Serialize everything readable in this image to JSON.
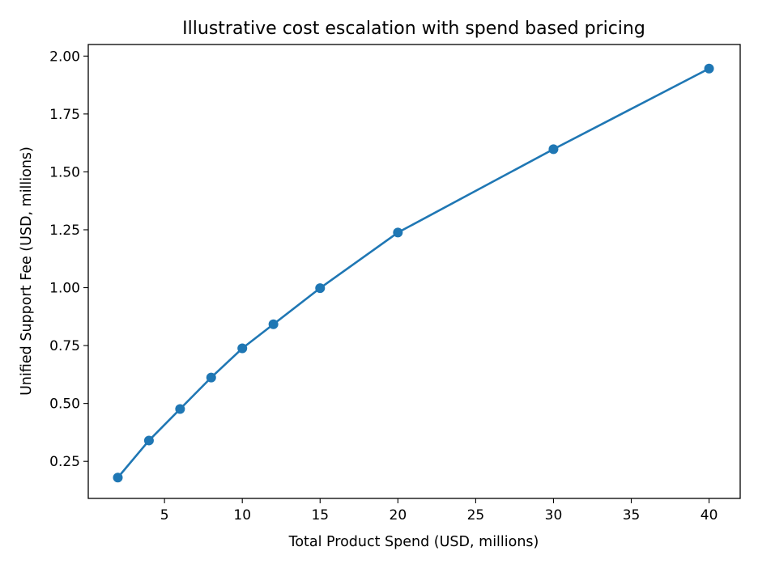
{
  "chart_data": {
    "type": "line",
    "title": "Illustrative cost escalation with spend based pricing",
    "xlabel": "Total Product Spend (USD, millions)",
    "ylabel": "Unified Support Fee (USD, millions)",
    "xlim": [
      0.1,
      42.0
    ],
    "ylim": [
      0.09,
      2.05
    ],
    "xticks": [
      5,
      10,
      15,
      20,
      25,
      30,
      35,
      40
    ],
    "xtick_labels": [
      "5",
      "10",
      "15",
      "20",
      "25",
      "30",
      "35",
      "40"
    ],
    "yticks": [
      0.25,
      0.5,
      0.75,
      1.0,
      1.25,
      1.5,
      1.75,
      2.0
    ],
    "ytick_labels": [
      "0.25",
      "0.50",
      "0.75",
      "1.00",
      "1.25",
      "1.50",
      "1.75",
      "2.00"
    ],
    "grid": false,
    "series": [
      {
        "name": "Unified Support Fee",
        "color": "#1f77b4",
        "marker": "circle",
        "x": [
          2,
          4,
          6,
          8,
          10,
          12,
          15,
          20,
          30,
          40
        ],
        "y": [
          0.18,
          0.34,
          0.476,
          0.612,
          0.738,
          0.842,
          0.998,
          1.238,
          1.598,
          1.946
        ]
      }
    ]
  }
}
